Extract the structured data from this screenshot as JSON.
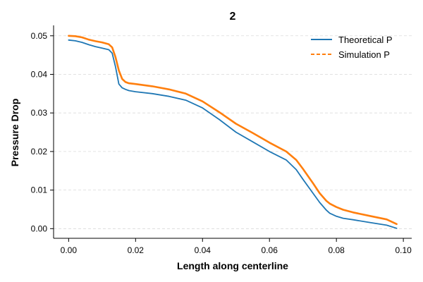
{
  "chart_data": {
    "type": "line",
    "title": "2",
    "xlabel": "Length along centerline",
    "ylabel": "Pressure Drop",
    "xlim": [
      -0.0045,
      0.1025
    ],
    "ylim": [
      -0.0025,
      0.0527
    ],
    "xticks": [
      0.0,
      0.02,
      0.04,
      0.06,
      0.08,
      0.1
    ],
    "xtick_labels": [
      "0.00",
      "0.02",
      "0.04",
      "0.06",
      "0.08",
      "0.10"
    ],
    "yticks": [
      0.0,
      0.01,
      0.02,
      0.03,
      0.04,
      0.05
    ],
    "ytick_labels": [
      "0.00",
      "0.01",
      "0.02",
      "0.03",
      "0.04",
      "0.05"
    ],
    "grid": "horizontal-dashed",
    "legend_position": "top-right",
    "series": [
      {
        "name": "Theoretical P",
        "color": "#1f77b4",
        "style": "solid",
        "x": [
          0.0,
          0.002,
          0.004,
          0.006,
          0.008,
          0.01,
          0.012,
          0.013,
          0.014,
          0.015,
          0.016,
          0.017,
          0.018,
          0.02,
          0.025,
          0.03,
          0.035,
          0.04,
          0.045,
          0.05,
          0.055,
          0.06,
          0.065,
          0.068,
          0.07,
          0.073,
          0.075,
          0.077,
          0.078,
          0.08,
          0.082,
          0.085,
          0.09,
          0.095,
          0.098
        ],
        "y": [
          0.0489,
          0.0487,
          0.0483,
          0.0477,
          0.0472,
          0.0468,
          0.0464,
          0.0455,
          0.042,
          0.0375,
          0.0365,
          0.0361,
          0.0358,
          0.0355,
          0.035,
          0.0343,
          0.0333,
          0.0313,
          0.0283,
          0.025,
          0.0225,
          0.02,
          0.0178,
          0.0153,
          0.0128,
          0.0092,
          0.0068,
          0.0048,
          0.004,
          0.0032,
          0.0027,
          0.0023,
          0.0016,
          0.0009,
          0.0001
        ]
      },
      {
        "name": "Simulation P",
        "color": "#ff7f0e",
        "style": "dashed",
        "x": [
          0.0,
          0.002,
          0.004,
          0.006,
          0.008,
          0.01,
          0.012,
          0.013,
          0.014,
          0.015,
          0.016,
          0.017,
          0.018,
          0.02,
          0.025,
          0.03,
          0.035,
          0.04,
          0.045,
          0.05,
          0.055,
          0.06,
          0.065,
          0.068,
          0.07,
          0.073,
          0.075,
          0.077,
          0.078,
          0.08,
          0.082,
          0.085,
          0.09,
          0.095,
          0.098
        ],
        "y": [
          0.05,
          0.0499,
          0.0496,
          0.049,
          0.0486,
          0.0483,
          0.0478,
          0.047,
          0.0445,
          0.041,
          0.0388,
          0.038,
          0.0377,
          0.0375,
          0.0369,
          0.0361,
          0.035,
          0.033,
          0.0302,
          0.0272,
          0.0248,
          0.0223,
          0.02,
          0.0178,
          0.0155,
          0.0118,
          0.0092,
          0.0072,
          0.0065,
          0.0056,
          0.0049,
          0.0042,
          0.0033,
          0.0024,
          0.0012
        ]
      }
    ]
  }
}
